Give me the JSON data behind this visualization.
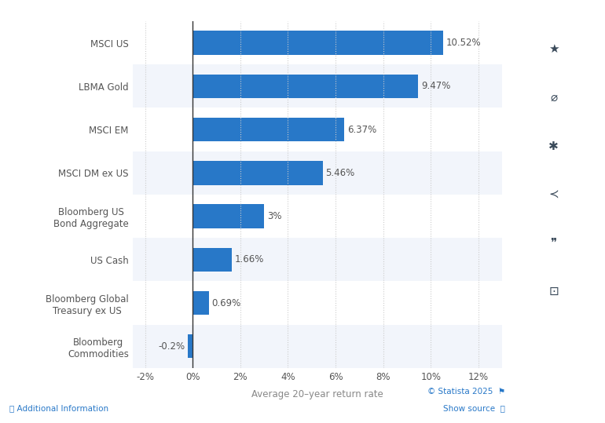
{
  "categories": [
    "Bloomberg\nCommodities",
    "Bloomberg Global\nTreasury ex US",
    "US Cash",
    "Bloomberg US\nBond Aggregate",
    "MSCI DM ex US",
    "MSCI EM",
    "LBMA Gold",
    "MSCI US"
  ],
  "values": [
    -0.2,
    0.69,
    1.66,
    3.0,
    5.46,
    6.37,
    9.47,
    10.52
  ],
  "labels": [
    "-0.2%",
    "0.69%",
    "1.66%",
    "3%",
    "5.46%",
    "6.37%",
    "9.47%",
    "10.52%"
  ],
  "bar_color": "#2878C8",
  "xlabel": "Average 20–year return rate",
  "xlim": [
    -2.5,
    13.0
  ],
  "xticks": [
    -2,
    0,
    2,
    4,
    6,
    8,
    10,
    12
  ],
  "xtick_labels": [
    "-2%",
    "0%",
    "2%",
    "4%",
    "6%",
    "8%",
    "10%",
    "12%"
  ],
  "bg_color": "#ffffff",
  "alt_row_color": "#f2f5fb",
  "grid_color": "#cccccc",
  "label_color": "#555555",
  "xlabel_color": "#888888",
  "xlabel_fontsize": 8.5,
  "tick_label_fontsize": 8.5,
  "bar_label_fontsize": 8.5,
  "category_fontsize": 8.5,
  "sidebar_color": "#f0f0f0",
  "sidebar_icon_color": "#3a4a5a",
  "footer_color": "#2878C8"
}
